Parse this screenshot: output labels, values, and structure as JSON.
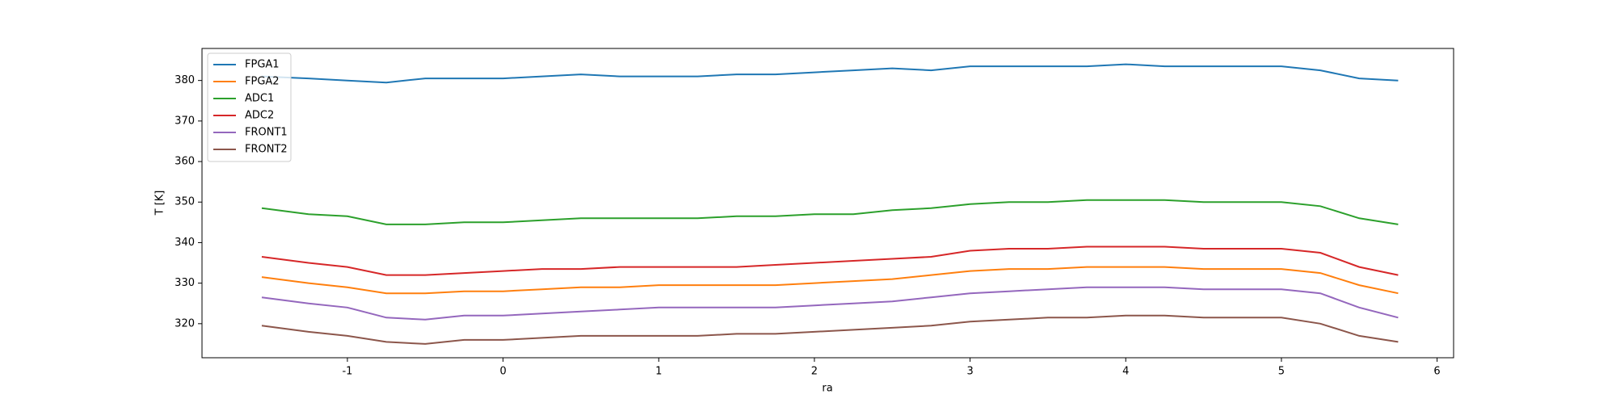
{
  "chart_data": {
    "type": "line",
    "x_label": "ra",
    "y_label": "T [K]",
    "x": [
      -1.55,
      -1.25,
      -1,
      -0.75,
      -0.5,
      -0.25,
      0,
      0.25,
      0.5,
      0.75,
      1,
      1.25,
      1.5,
      1.75,
      2,
      2.25,
      2.5,
      2.75,
      3,
      3.25,
      3.5,
      3.75,
      4,
      4.25,
      4.5,
      4.75,
      5,
      5.25,
      5.5,
      5.75
    ],
    "series": [
      {
        "name": "FPGA1",
        "color": "#1f77b4",
        "values": [
          381,
          380.5,
          380,
          379.5,
          380.5,
          380.5,
          380.5,
          381,
          381.5,
          381,
          381,
          381,
          381.5,
          381.5,
          382,
          382.5,
          383,
          382.5,
          383.5,
          383.5,
          383.5,
          383.5,
          384,
          383.5,
          383.5,
          383.5,
          383.5,
          382.5,
          380.5,
          380
        ]
      },
      {
        "name": "FPGA2",
        "color": "#ff7f0e",
        "values": [
          331.5,
          330,
          329,
          327.5,
          327.5,
          328,
          328,
          328.5,
          329,
          329,
          329.5,
          329.5,
          329.5,
          329.5,
          330,
          330.5,
          331,
          332,
          333,
          333.5,
          333.5,
          334,
          334,
          334,
          333.5,
          333.5,
          333.5,
          332.5,
          329.5,
          327.5
        ]
      },
      {
        "name": "ADC1",
        "color": "#2ca02c",
        "values": [
          348.5,
          347,
          346.5,
          344.5,
          344.5,
          345,
          345,
          345.5,
          346,
          346,
          346,
          346,
          346.5,
          346.5,
          347,
          347,
          348,
          348.5,
          349.5,
          350,
          350,
          350.5,
          350.5,
          350.5,
          350,
          350,
          350,
          349,
          346,
          344.5
        ]
      },
      {
        "name": "ADC2",
        "color": "#d62728",
        "values": [
          336.5,
          335,
          334,
          332,
          332,
          332.5,
          333,
          333.5,
          333.5,
          334,
          334,
          334,
          334,
          334.5,
          335,
          335.5,
          336,
          336.5,
          338,
          338.5,
          338.5,
          339,
          339,
          339,
          338.5,
          338.5,
          338.5,
          337.5,
          334,
          332
        ]
      },
      {
        "name": "FRONT1",
        "color": "#9467bd",
        "values": [
          326.5,
          325,
          324,
          321.5,
          321,
          322,
          322,
          322.5,
          323,
          323.5,
          324,
          324,
          324,
          324,
          324.5,
          325,
          325.5,
          326.5,
          327.5,
          328,
          328.5,
          329,
          329,
          329,
          328.5,
          328.5,
          328.5,
          327.5,
          324,
          321.5
        ]
      },
      {
        "name": "FRONT2",
        "color": "#8c564b",
        "values": [
          319.5,
          318,
          317,
          315.5,
          315,
          316,
          316,
          316.5,
          317,
          317,
          317,
          317,
          317.5,
          317.5,
          318,
          318.5,
          319,
          319.5,
          320.5,
          321,
          321.5,
          321.5,
          322,
          322,
          321.5,
          321.5,
          321.5,
          320,
          317,
          315.5
        ]
      }
    ],
    "xlim": [
      -1.934,
      6.106
    ],
    "ylim": [
      311.6,
      387.9
    ],
    "xticks": [
      -1,
      0,
      1,
      2,
      3,
      4,
      5,
      6
    ],
    "yticks": [
      320,
      330,
      340,
      350,
      360,
      370,
      380
    ],
    "legend": "upper left"
  }
}
